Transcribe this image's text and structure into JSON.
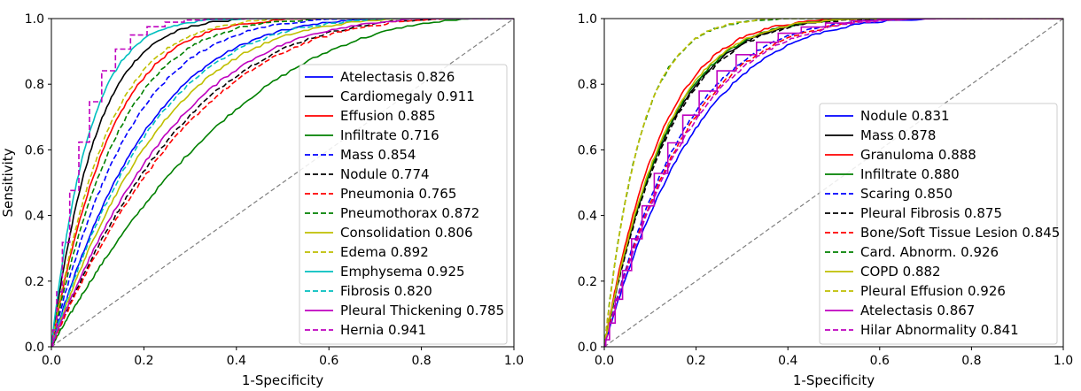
{
  "chart_data": [
    {
      "type": "line",
      "xlabel": "1-Specificity",
      "ylabel": "Sensitivity",
      "xlim": [
        0,
        1
      ],
      "ylim": [
        0,
        1
      ],
      "xticks": [
        "0.0",
        "0.2",
        "0.4",
        "0.6",
        "0.8",
        "1.0"
      ],
      "yticks": [
        "0.0",
        "0.2",
        "0.4",
        "0.6",
        "0.8",
        "1.0"
      ],
      "legend_position": "lower-right",
      "diagonal": {
        "color": "#808080",
        "dash": "dashed"
      },
      "series": [
        {
          "name": "Atelectasis 0.826",
          "color": "#0000ff",
          "dash": "solid",
          "auc": 0.826
        },
        {
          "name": "Cardiomegaly 0.911",
          "color": "#000000",
          "dash": "solid",
          "auc": 0.911
        },
        {
          "name": "Effusion 0.885",
          "color": "#ff0000",
          "dash": "solid",
          "auc": 0.885
        },
        {
          "name": "Infiltrate 0.716",
          "color": "#008000",
          "dash": "solid",
          "auc": 0.716
        },
        {
          "name": "Mass 0.854",
          "color": "#0000ff",
          "dash": "dashed",
          "auc": 0.854
        },
        {
          "name": "Nodule 0.774",
          "color": "#000000",
          "dash": "dashed",
          "auc": 0.774
        },
        {
          "name": "Pneumonia 0.765",
          "color": "#ff0000",
          "dash": "dashed",
          "auc": 0.765
        },
        {
          "name": "Pneumothorax 0.872",
          "color": "#008000",
          "dash": "dashed",
          "auc": 0.872
        },
        {
          "name": "Consolidation 0.806",
          "color": "#bfbf00",
          "dash": "solid",
          "auc": 0.806
        },
        {
          "name": "Edema 0.892",
          "color": "#bfbf00",
          "dash": "dashed",
          "auc": 0.892
        },
        {
          "name": "Emphysema 0.925",
          "color": "#00bfbf",
          "dash": "solid",
          "auc": 0.925
        },
        {
          "name": "Fibrosis 0.820",
          "color": "#00bfbf",
          "dash": "dashed",
          "auc": 0.82
        },
        {
          "name": "Pleural Thickening 0.785",
          "color": "#bf00bf",
          "dash": "solid",
          "auc": 0.785
        },
        {
          "name": "Hernia 0.941",
          "color": "#bf00bf",
          "dash": "dashed",
          "auc": 0.941,
          "stepped": true
        }
      ]
    },
    {
      "type": "line",
      "xlabel": "1-Specificity",
      "ylabel": "",
      "xlim": [
        0,
        1
      ],
      "ylim": [
        0,
        1
      ],
      "xticks": [
        "0.0",
        "0.2",
        "0.4",
        "0.6",
        "0.8",
        "1.0"
      ],
      "yticks": [
        "0.0",
        "0.2",
        "0.4",
        "0.6",
        "0.8",
        "1.0"
      ],
      "legend_position": "lower-right",
      "diagonal": {
        "color": "#808080",
        "dash": "dashed"
      },
      "series": [
        {
          "name": "Nodule 0.831",
          "color": "#0000ff",
          "dash": "solid",
          "auc": 0.831
        },
        {
          "name": "Mass 0.878",
          "color": "#000000",
          "dash": "solid",
          "auc": 0.878
        },
        {
          "name": "Granuloma 0.888",
          "color": "#ff0000",
          "dash": "solid",
          "auc": 0.888
        },
        {
          "name": "Infiltrate 0.880",
          "color": "#008000",
          "dash": "solid",
          "auc": 0.88
        },
        {
          "name": "Scaring 0.850",
          "color": "#0000ff",
          "dash": "dashed",
          "auc": 0.85
        },
        {
          "name": "Pleural Fibrosis 0.875",
          "color": "#000000",
          "dash": "dashed",
          "auc": 0.875
        },
        {
          "name": "Bone/Soft Tissue Lesion 0.845",
          "color": "#ff0000",
          "dash": "dashed",
          "auc": 0.845
        },
        {
          "name": "Card. Abnorm. 0.926",
          "color": "#008000",
          "dash": "dashed",
          "auc": 0.926
        },
        {
          "name": "COPD 0.882",
          "color": "#bfbf00",
          "dash": "solid",
          "auc": 0.882
        },
        {
          "name": "Pleural Effusion 0.926",
          "color": "#bfbf00",
          "dash": "dashed",
          "auc": 0.926
        },
        {
          "name": "Atelectasis 0.867",
          "color": "#bf00bf",
          "dash": "solid",
          "auc": 0.867,
          "stepped": true
        },
        {
          "name": "Hilar Abnormality 0.841",
          "color": "#bf00bf",
          "dash": "dashed",
          "auc": 0.841
        }
      ]
    }
  ]
}
